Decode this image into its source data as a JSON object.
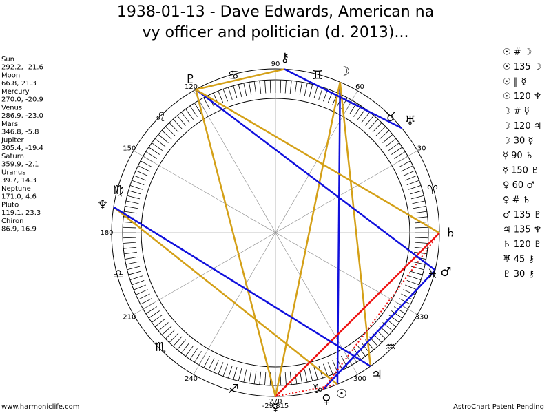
{
  "header": {
    "title_lines": [
      "1938-01-13 - Dave Edwards, American na",
      "vy officer and politician (d. 2013)..."
    ]
  },
  "planets": [
    {
      "name": "Sun",
      "position": "292.2, -21.6",
      "glyph": "☉"
    },
    {
      "name": "Moon",
      "position": "66.8, 21.3",
      "glyph": "☽"
    },
    {
      "name": "Mercury",
      "position": "270.0, -20.9",
      "glyph": "☿"
    },
    {
      "name": "Venus",
      "position": "286.9, -23.0",
      "glyph": "♀"
    },
    {
      "name": "Mars",
      "position": "346.8, -5.8",
      "glyph": "♂"
    },
    {
      "name": "Jupiter",
      "position": "305.4, -19.4",
      "glyph": "♃"
    },
    {
      "name": "Saturn",
      "position": "359.9, -2.1",
      "glyph": "♄"
    },
    {
      "name": "Uranus",
      "position": "39.7, 14.3",
      "glyph": "♅"
    },
    {
      "name": "Neptune",
      "position": "171.0, 4.6",
      "glyph": "♆"
    },
    {
      "name": "Pluto",
      "position": "119.1, 23.3",
      "glyph": "♇"
    },
    {
      "name": "Chiron",
      "position": "86.9, 16.9",
      "glyph": "⚷"
    }
  ],
  "aspects": [
    "☉ # ☽",
    "☉ 135 ☽",
    "☉ ‖ ☿",
    "☉ 120 ♆",
    "☽ # ☿",
    "☽ 120 ♃",
    "☽ 30 ☿",
    "☿ 90 ♄",
    "☿ 150 ♇",
    "♀ 60 ♂",
    "♀ # ♄",
    "♂ 135 ♇",
    "♃ 135 ♆",
    "♄ 120 ♇",
    "♅ 45 ⚷",
    "♇ 30 ⚷"
  ],
  "wheel": {
    "degree_labels": [
      30,
      60,
      90,
      120,
      150,
      180,
      210,
      240,
      270,
      300,
      330
    ],
    "signs": [
      "♈",
      "♉",
      "♊",
      "♋",
      "♌",
      "♍",
      "♎",
      "♏",
      "♐",
      "♑",
      "♒",
      "♓"
    ],
    "bottom_value": "-29.815"
  },
  "footer": {
    "left": "www.harmoniclife.com",
    "right": "AstroChart Patent Pending"
  }
}
